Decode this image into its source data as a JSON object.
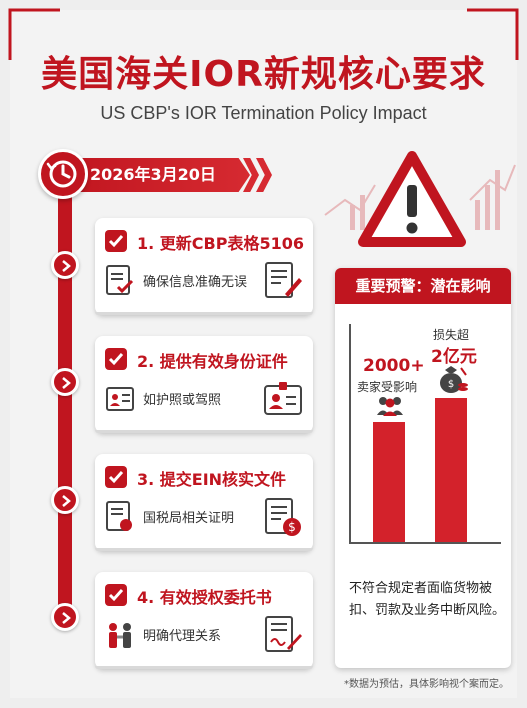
{
  "header": {
    "title": "美国海关IOR新规核心要求",
    "subtitle": "US CBP's IOR Termination Policy Impact"
  },
  "timeline": {
    "date": "2026年3月20日",
    "steps": [
      {
        "title": "1. 更新CBP表格5106",
        "desc": "确保信息准确无误",
        "icon": "form-edit-icon"
      },
      {
        "title": "2. 提供有效身份证件",
        "desc": "如护照或驾照",
        "icon": "id-card-icon"
      },
      {
        "title": "3. 提交EIN核实文件",
        "desc": "国税局相关证明",
        "icon": "tax-document-icon"
      },
      {
        "title": "4. 有效授权委托书",
        "desc": "明确代理关系",
        "icon": "signed-contract-icon"
      }
    ]
  },
  "alert_panel": {
    "heading": "重要预警：潜在影响",
    "left_value": "2000+",
    "left_label": "卖家受影响",
    "right_label": "损失超",
    "right_value": "2亿元",
    "note": "不符合规定者面临货物被扣、罚款及业务中断风险。",
    "accent_color": "#c0151f"
  },
  "footnote": "*数据为预估，具体影响视个案而定。"
}
